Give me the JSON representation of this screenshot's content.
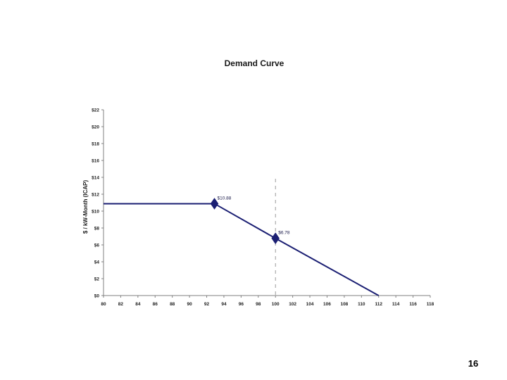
{
  "slide": {
    "page_number": "16"
  },
  "chart_data": {
    "type": "line",
    "title": "Demand Curve",
    "ylabel": "$ / kW-Month (ICAP)",
    "xlabel": "",
    "xlim": [
      80,
      118
    ],
    "ylim": [
      0,
      22
    ],
    "x_ticks": [
      80,
      82,
      84,
      86,
      88,
      90,
      92,
      94,
      96,
      98,
      100,
      102,
      104,
      106,
      108,
      110,
      112,
      114,
      116,
      118
    ],
    "y_ticks": [
      0,
      2,
      4,
      6,
      8,
      10,
      12,
      14,
      16,
      18,
      20,
      22
    ],
    "y_tick_labels": [
      "$0",
      "$2",
      "$4",
      "$6",
      "$8",
      "$10",
      "$12",
      "$14",
      "$16",
      "$18",
      "$20",
      "$22"
    ],
    "grid": false,
    "series": [
      {
        "x": [
          80,
          92.9,
          100,
          112
        ],
        "y": [
          10.88,
          10.88,
          6.78,
          0
        ],
        "color": "#1b1f73"
      }
    ],
    "markers": [
      {
        "x": 92.9,
        "y": 10.88,
        "label": "$10.88"
      },
      {
        "x": 100,
        "y": 6.78,
        "label": "$6.78"
      }
    ],
    "reference_line": {
      "x": 100,
      "style": "dashed",
      "color": "#9a9a9a"
    }
  }
}
